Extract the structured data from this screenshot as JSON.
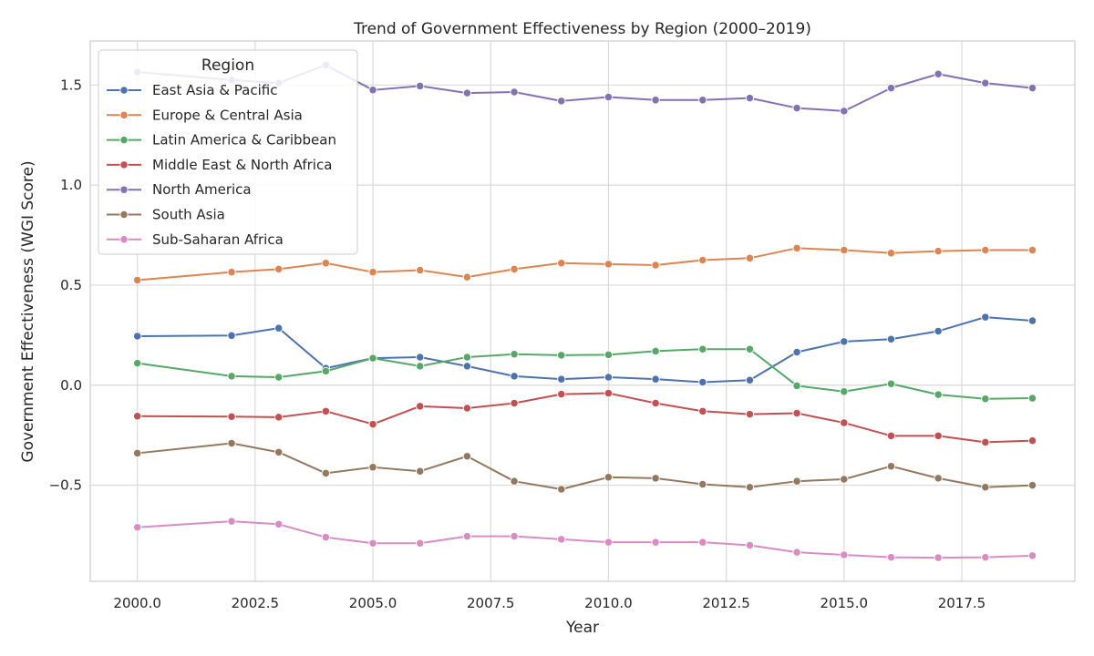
{
  "chart_data": {
    "type": "line",
    "title": "Trend of Government Effectiveness by Region (2000–2019)",
    "xlabel": "Year",
    "ylabel": "Government Effectiveness (WGI Score)",
    "xlim": [
      1999.0,
      2019.9
    ],
    "ylim": [
      -0.98,
      1.72
    ],
    "x_ticks": [
      2000.0,
      2002.5,
      2005.0,
      2007.5,
      2010.0,
      2012.5,
      2015.0,
      2017.5
    ],
    "x_tick_labels": [
      "2000.0",
      "2002.5",
      "2005.0",
      "2007.5",
      "2010.0",
      "2012.5",
      "2015.0",
      "2017.5"
    ],
    "y_ticks": [
      -0.5,
      0.0,
      0.5,
      1.0,
      1.5
    ],
    "y_tick_labels": [
      "−0.5",
      "0.0",
      "0.5",
      "1.0",
      "1.5"
    ],
    "grid": true,
    "legend": {
      "title": "Region",
      "placement": "top-left"
    },
    "x": [
      2000,
      2002,
      2003,
      2004,
      2005,
      2006,
      2007,
      2008,
      2009,
      2010,
      2011,
      2012,
      2013,
      2014,
      2015,
      2016,
      2017,
      2018,
      2019
    ],
    "series": [
      {
        "name": "East Asia & Pacific",
        "color": "#4c72b0",
        "values": [
          0.245,
          0.248,
          0.285,
          0.085,
          0.135,
          0.14,
          0.095,
          0.045,
          0.03,
          0.04,
          0.03,
          0.015,
          0.025,
          0.165,
          0.218,
          0.23,
          0.27,
          0.34,
          0.322
        ]
      },
      {
        "name": "Europe & Central Asia",
        "color": "#dd8452",
        "values": [
          0.525,
          0.565,
          0.58,
          0.61,
          0.565,
          0.575,
          0.54,
          0.58,
          0.61,
          0.605,
          0.6,
          0.625,
          0.635,
          0.685,
          0.675,
          0.66,
          0.67,
          0.675,
          0.675
        ]
      },
      {
        "name": "Latin America & Caribbean",
        "color": "#55a868",
        "values": [
          0.11,
          0.045,
          0.04,
          0.07,
          0.135,
          0.095,
          0.14,
          0.155,
          0.15,
          0.152,
          0.17,
          0.18,
          0.18,
          -0.003,
          -0.032,
          0.007,
          -0.047,
          -0.068,
          -0.065
        ]
      },
      {
        "name": "Middle East & North Africa",
        "color": "#c44e52",
        "values": [
          -0.155,
          -0.157,
          -0.16,
          -0.13,
          -0.195,
          -0.105,
          -0.115,
          -0.09,
          -0.045,
          -0.04,
          -0.09,
          -0.13,
          -0.145,
          -0.14,
          -0.188,
          -0.253,
          -0.253,
          -0.285,
          -0.277
        ]
      },
      {
        "name": "North America",
        "color": "#8172b3",
        "values": [
          1.565,
          1.525,
          1.51,
          1.6,
          1.475,
          1.495,
          1.46,
          1.465,
          1.42,
          1.44,
          1.425,
          1.425,
          1.435,
          1.385,
          1.37,
          1.485,
          1.555,
          1.51,
          1.485
        ]
      },
      {
        "name": "South Asia",
        "color": "#937860",
        "values": [
          -0.34,
          -0.29,
          -0.335,
          -0.44,
          -0.41,
          -0.43,
          -0.355,
          -0.48,
          -0.52,
          -0.46,
          -0.465,
          -0.495,
          -0.51,
          -0.48,
          -0.47,
          -0.405,
          -0.465,
          -0.51,
          -0.5
        ]
      },
      {
        "name": "Sub-Saharan Africa",
        "color": "#da8bc3",
        "values": [
          -0.71,
          -0.68,
          -0.695,
          -0.76,
          -0.79,
          -0.79,
          -0.755,
          -0.755,
          -0.77,
          -0.785,
          -0.785,
          -0.785,
          -0.8,
          -0.835,
          -0.848,
          -0.86,
          -0.862,
          -0.86,
          -0.852
        ]
      }
    ]
  }
}
